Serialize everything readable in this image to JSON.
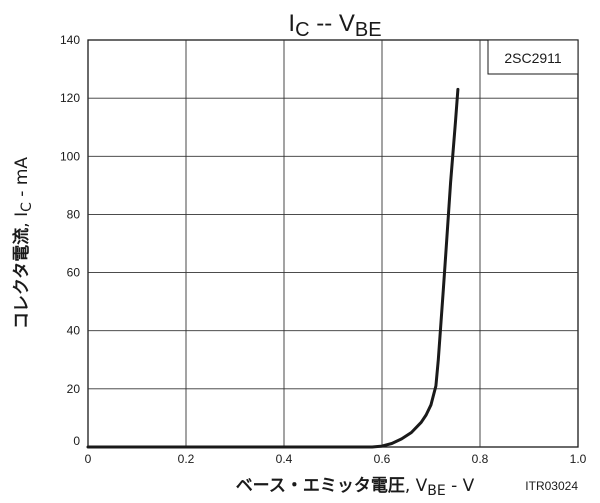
{
  "chart_data": {
    "type": "line",
    "title_main": "I",
    "title_sub1": "C",
    "title_sep": " -- V",
    "title_sub2": "BE",
    "xlabel_jp": "ベース・エミッタ電圧",
    "xlabel_main": ", V",
    "xlabel_sub": "BE",
    "xlabel_unit": " - V",
    "ylabel_jp": "コレクタ電流",
    "ylabel_main": ", I",
    "ylabel_sub": "C",
    "ylabel_unit": " - mA",
    "xlim": [
      0,
      1.0
    ],
    "ylim": [
      0,
      140
    ],
    "x_ticks": [
      "0",
      "0.2",
      "0.4",
      "0.6",
      "0.8",
      "1.0"
    ],
    "y_ticks": [
      "0",
      "20",
      "40",
      "60",
      "80",
      "100",
      "120",
      "140"
    ],
    "grid": true,
    "annotations": {
      "part_number": "2SC2911",
      "figure_code": "ITR03024"
    },
    "series": [
      {
        "x": [
          0.0,
          0.2,
          0.4,
          0.58,
          0.6,
          0.62,
          0.64,
          0.66,
          0.68,
          0.69,
          0.7,
          0.71,
          0.715,
          0.72,
          0.725,
          0.73,
          0.74,
          0.75,
          0.755
        ],
        "y": [
          0.0,
          0.0,
          0.0,
          0.0,
          0.3,
          1.2,
          2.8,
          5.0,
          8.5,
          11.0,
          14.5,
          21.0,
          30.0,
          42.0,
          54.0,
          66.0,
          91.0,
          112.0,
          123.0
        ]
      }
    ]
  }
}
